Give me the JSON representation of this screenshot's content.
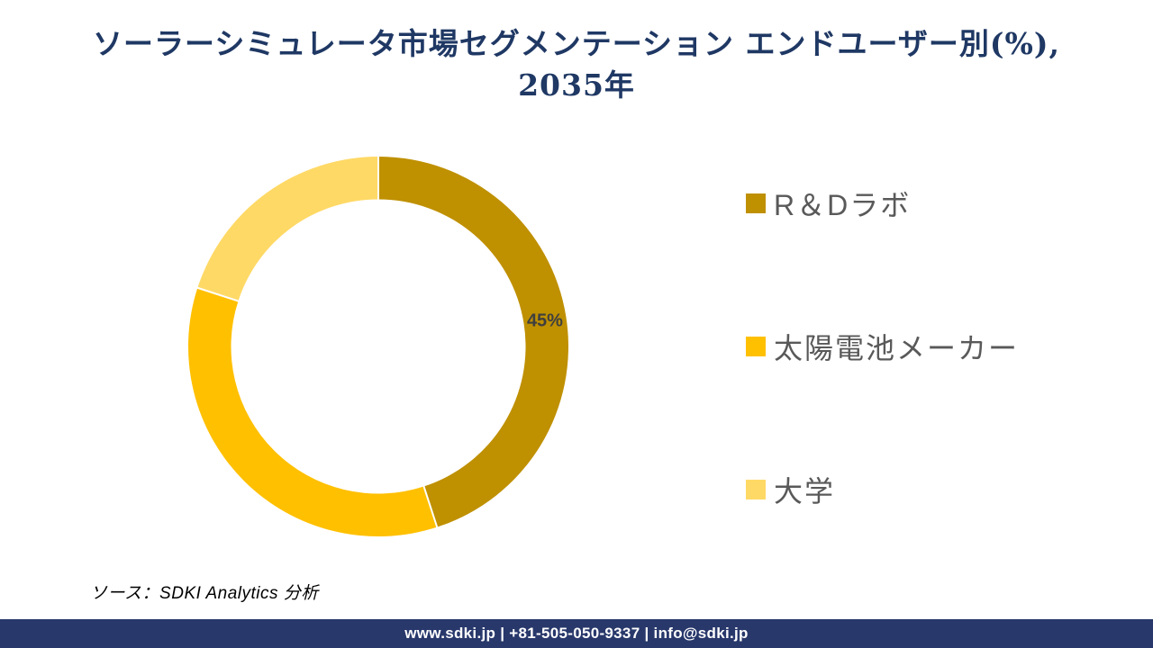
{
  "title": {
    "line1": "ソーラーシミュレータ市場セグメンテーション エンドユーザー別(%),",
    "line2": "2035年",
    "color": "#1F3864"
  },
  "chart_data": {
    "type": "pie",
    "subtype": "donut",
    "categories": [
      "R＆Dラボ",
      "太陽電池メーカー",
      "大学"
    ],
    "values": [
      45,
      35,
      20
    ],
    "colors": [
      "#BF9000",
      "#FFC000",
      "#FFD966"
    ],
    "data_labels": [
      {
        "segment_index": 0,
        "text": "45%"
      }
    ],
    "start_angle_deg": 0,
    "direction": "clockwise",
    "inner_radius_ratio": 0.775,
    "separator_color": "#FFFFFF",
    "legend_position": "right",
    "title": "ソーラーシミュレータ市場セグメンテーション エンドユーザー別(%), 2035年"
  },
  "legend": {
    "items": [
      {
        "label": "R＆Dラボ",
        "color": "#BF9000"
      },
      {
        "label": "太陽電池メーカー",
        "color": "#FFC000"
      },
      {
        "label": "大学",
        "color": "#FFD966"
      }
    ]
  },
  "source_note": "ソース：SDKI Analytics 分析",
  "footer": {
    "text": "www.sdki.jp | +81-505-050-9337 | info@sdki.jp",
    "background": "#28386B"
  }
}
